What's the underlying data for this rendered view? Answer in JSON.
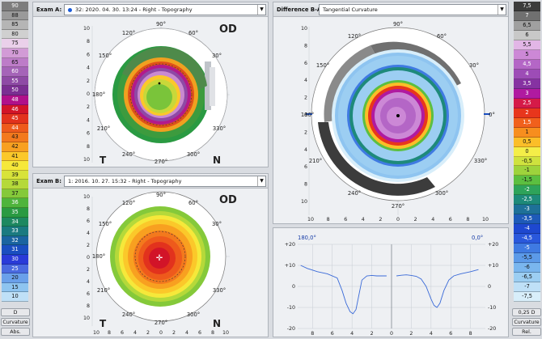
{
  "scale_left": {
    "values": [
      "90",
      "88",
      "85",
      "80",
      "75",
      "70",
      "65",
      "60",
      "55",
      "50",
      "48",
      "46",
      "45",
      "44",
      "43",
      "42",
      "41",
      "40",
      "39",
      "38",
      "37",
      "36",
      "35",
      "34",
      "33",
      "32",
      "31",
      "30",
      "25",
      "20",
      "15",
      "10"
    ],
    "colors": [
      "#7d7d7d",
      "#9a9a9a",
      "#b5b5b5",
      "#d0d0d0",
      "#ead0ea",
      "#d29bd6",
      "#bd7cc8",
      "#a564b8",
      "#8e4aa5",
      "#7a2e92",
      "#b0108a",
      "#d21428",
      "#e2321d",
      "#ee5a1c",
      "#f3791d",
      "#f8a020",
      "#fbc82a",
      "#f6e83a",
      "#d8e33a",
      "#b5d93a",
      "#85c93a",
      "#4fb43c",
      "#2a9a42",
      "#1d8860",
      "#1a7a80",
      "#1a64a0",
      "#1a4ec0",
      "#2a3bd8",
      "#4a6ae0",
      "#6aa0ea",
      "#8ec4f0",
      "#bfe0f7"
    ],
    "unit_label": "D",
    "mode_label": "Curvature",
    "type_label": "Abs."
  },
  "scale_right": {
    "values": [
      "7,5",
      "7",
      "6,5",
      "6",
      "5,5",
      "5",
      "4,5",
      "4",
      "3,5",
      "3",
      "2,5",
      "2",
      "1,5",
      "1",
      "0,5",
      "0",
      "-0,5",
      "-1",
      "-1,5",
      "-2",
      "-2,5",
      "-3",
      "-3,5",
      "-4",
      "-4,5",
      "-5",
      "-5,5",
      "-6",
      "-6,5",
      "-7",
      "-7,5"
    ],
    "colors": [
      "#3c3c3c",
      "#707070",
      "#a0a0a0",
      "#c8c8c8",
      "#e2b6e6",
      "#cc88d6",
      "#b466c6",
      "#9d4cb6",
      "#8632a2",
      "#b01aa0",
      "#d51a48",
      "#e8361c",
      "#f1601c",
      "#f78e1e",
      "#fbbe28",
      "#f4ee48",
      "#cfe23e",
      "#9ed33c",
      "#5cbf40",
      "#2ea35a",
      "#1e8a7a",
      "#1e7098",
      "#1e5ab8",
      "#1e48d0",
      "#2a58dc",
      "#3f7ae2",
      "#5c9ae8",
      "#7ab6ee",
      "#9ccef2",
      "#bfe0f7",
      "#d8eefa"
    ],
    "unit_label": "0,25 D",
    "mode_label": "Curvature",
    "type_label": "Rel."
  },
  "exam_a": {
    "label": "Exam A:",
    "selection": "32: 2020. 04. 30. 13:24 - Right - Topography",
    "eye": "OD",
    "temporal": "T",
    "nasal": "N"
  },
  "exam_b": {
    "label": "Exam B:",
    "selection": "1: 2016. 10. 27. 15:32 - Right - Topography",
    "eye": "OD",
    "temporal": "T",
    "nasal": "N"
  },
  "difference": {
    "label": "Difference B-A:",
    "selection": "Tangential Curvature"
  },
  "angle_labels": {
    "a0": "0°",
    "a30": "30°",
    "a60": "60°",
    "a90": "90°",
    "a120": "120°",
    "a150": "150°",
    "a180": "180°",
    "a210": "210°",
    "a240": "240°",
    "a270": "270°",
    "a300": "300°",
    "a330": "330°"
  },
  "axis_ticks": [
    "10",
    "8",
    "6",
    "4",
    "2",
    "0",
    "2",
    "4",
    "6",
    "8",
    "10"
  ],
  "profile": {
    "left_angle": "180,0°",
    "right_angle": "0,0°",
    "y_ticks": [
      "+20",
      "+10",
      "0",
      "-10",
      "-20"
    ],
    "x_ticks": [
      "8",
      "6",
      "4",
      "2",
      "0",
      "2",
      "4",
      "6",
      "8"
    ]
  },
  "chart_data": {
    "type": "line",
    "title": "",
    "xlabel": "",
    "ylabel": "",
    "ylim": [
      -20,
      20
    ],
    "xlim": [
      -9.5,
      9.5
    ],
    "series": [
      {
        "x": [
          -9.2,
          -8.5,
          -7.5,
          -6.5,
          -5.5,
          -5,
          -4.6,
          -4.2,
          -3.9,
          -3.6,
          -3.3,
          -3,
          -2.5,
          -2,
          -1.5,
          -1,
          -0.5
        ],
        "values": [
          10,
          8.5,
          7,
          6,
          4,
          -2,
          -8,
          -12,
          -13,
          -11,
          -4,
          3,
          5,
          5.2,
          5,
          5,
          5
        ]
      },
      {
        "x": [
          0.5,
          1,
          1.5,
          2,
          2.5,
          3,
          3.5,
          4,
          4.3,
          4.6,
          4.9,
          5.3,
          5.8,
          6.3,
          7,
          8,
          8.8
        ],
        "values": [
          5,
          5.3,
          5.5,
          5.2,
          4.8,
          3.5,
          0,
          -6,
          -9,
          -10,
          -8,
          -2,
          3,
          5,
          6,
          7,
          8
        ]
      }
    ],
    "grid": true
  }
}
